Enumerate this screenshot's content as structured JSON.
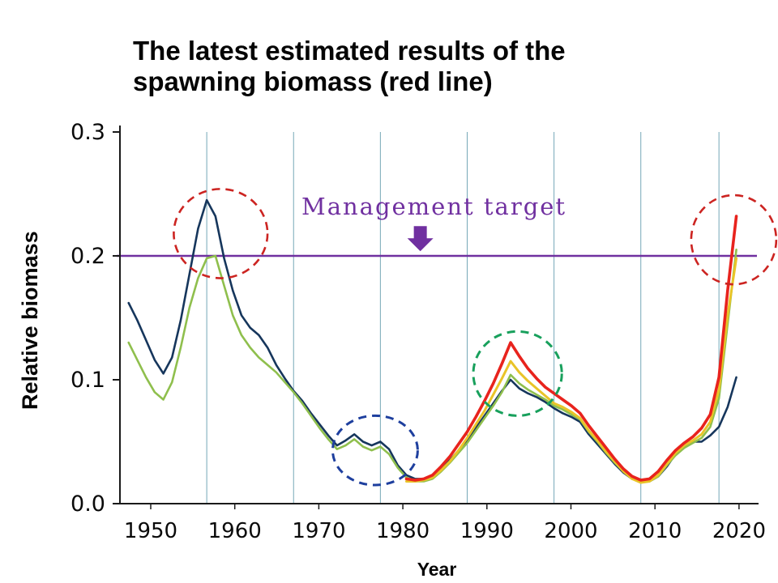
{
  "title": {
    "line1": "The latest estimated results of the",
    "line2": "spawning biomass (red line)"
  },
  "chart_data": {
    "type": "line",
    "title": "The latest estimated results of the spawning biomass (red line)",
    "xlabel": "Year",
    "ylabel": "Relative biomass",
    "xlim": [
      1949,
      2022
    ],
    "ylim": [
      0,
      0.3
    ],
    "x_ticks": [
      1950,
      1960,
      1970,
      1980,
      1990,
      2000,
      2010,
      2020
    ],
    "y_ticks": [
      0,
      0.1,
      0.2,
      0.3
    ],
    "x_gridlines": [
      1959,
      1969,
      1979,
      1989,
      1999,
      2009,
      2018
    ],
    "grid": "vertical-only",
    "legend": "none",
    "management_target": {
      "label": "Management target",
      "value": 0.2,
      "color": "#7030a0"
    },
    "series": [
      {
        "id": "dark-blue",
        "name": "dark blue line (earlier estimate)",
        "color": "#16365c",
        "width": 2.6,
        "x_start": 1950,
        "x_step": 1,
        "values": [
          0.162,
          0.148,
          0.132,
          0.116,
          0.105,
          0.118,
          0.148,
          0.185,
          0.222,
          0.245,
          0.232,
          0.198,
          0.172,
          0.152,
          0.142,
          0.136,
          0.126,
          0.112,
          0.101,
          0.091,
          0.083,
          0.073,
          0.064,
          0.055,
          0.047,
          0.051,
          0.056,
          0.05,
          0.047,
          0.05,
          0.044,
          0.031,
          0.023,
          0.02,
          0.02,
          0.022,
          0.028,
          0.035,
          0.043,
          0.051,
          0.061,
          0.071,
          0.081,
          0.091,
          0.1,
          0.093,
          0.089,
          0.086,
          0.082,
          0.077,
          0.073,
          0.07,
          0.066,
          0.056,
          0.048,
          0.04,
          0.032,
          0.025,
          0.02,
          0.018,
          0.018,
          0.022,
          0.03,
          0.04,
          0.046,
          0.05,
          0.05,
          0.055,
          0.062,
          0.078,
          0.102
        ]
      },
      {
        "id": "green",
        "name": "green line (earlier estimate)",
        "color": "#8fbf4d",
        "width": 2.6,
        "x_start": 1950,
        "x_step": 1,
        "values": [
          0.13,
          0.116,
          0.102,
          0.09,
          0.084,
          0.098,
          0.126,
          0.158,
          0.182,
          0.198,
          0.2,
          0.176,
          0.152,
          0.136,
          0.126,
          0.118,
          0.112,
          0.106,
          0.098,
          0.09,
          0.081,
          0.071,
          0.061,
          0.052,
          0.044,
          0.047,
          0.052,
          0.046,
          0.043,
          0.046,
          0.04,
          0.029,
          0.021,
          0.018,
          0.018,
          0.02,
          0.026,
          0.033,
          0.041,
          0.049,
          0.059,
          0.069,
          0.079,
          0.09,
          0.104,
          0.097,
          0.092,
          0.088,
          0.084,
          0.079,
          0.076,
          0.072,
          0.068,
          0.058,
          0.05,
          0.041,
          0.033,
          0.026,
          0.02,
          0.018,
          0.018,
          0.022,
          0.031,
          0.039,
          0.045,
          0.049,
          0.053,
          0.062,
          0.085,
          0.145,
          0.205
        ]
      },
      {
        "id": "yellow",
        "name": "yellow line (estimate)",
        "color": "#e9c428",
        "width": 3,
        "x_start": 1982,
        "x_step": 1,
        "values": [
          0.018,
          0.018,
          0.019,
          0.021,
          0.027,
          0.034,
          0.043,
          0.053,
          0.064,
          0.075,
          0.088,
          0.101,
          0.115,
          0.106,
          0.099,
          0.093,
          0.087,
          0.081,
          0.078,
          0.074,
          0.069,
          0.059,
          0.051,
          0.042,
          0.034,
          0.026,
          0.02,
          0.017,
          0.018,
          0.023,
          0.032,
          0.041,
          0.047,
          0.051,
          0.056,
          0.066,
          0.092,
          0.152,
          0.198
        ]
      },
      {
        "id": "red",
        "name": "red line (latest estimated spawning biomass)",
        "color": "#e8231d",
        "width": 3.6,
        "x_start": 1982,
        "x_step": 1,
        "values": [
          0.02,
          0.019,
          0.02,
          0.023,
          0.03,
          0.038,
          0.048,
          0.058,
          0.07,
          0.083,
          0.097,
          0.113,
          0.13,
          0.119,
          0.109,
          0.101,
          0.094,
          0.089,
          0.084,
          0.079,
          0.073,
          0.063,
          0.054,
          0.045,
          0.036,
          0.028,
          0.022,
          0.019,
          0.02,
          0.026,
          0.035,
          0.043,
          0.049,
          0.054,
          0.061,
          0.072,
          0.102,
          0.172,
          0.232
        ]
      }
    ],
    "annotations": {
      "circles": [
        {
          "name": "dashed-circle-1959-peak",
          "color": "#cc2421",
          "cx": 1960.6,
          "cy": 0.218,
          "rx": 5.4,
          "ry": 0.036,
          "width": 2.6
        },
        {
          "name": "dashed-circle-2020-rise",
          "color": "#cc2421",
          "cx": 2019.7,
          "cy": 0.213,
          "rx": 4.9,
          "ry": 0.036,
          "width": 2.6
        },
        {
          "name": "dashed-circle-late-1970s-low",
          "color": "#1e3f9e",
          "cx": 1978.4,
          "cy": 0.043,
          "rx": 4.9,
          "ry": 0.028,
          "width": 3
        },
        {
          "name": "dashed-circle-mid-1990s-peak",
          "color": "#18a05c",
          "cx": 1994.8,
          "cy": 0.105,
          "rx": 5.1,
          "ry": 0.034,
          "width": 3
        }
      ],
      "arrow": {
        "symbol": "down-arrow",
        "x": 1983.6,
        "top_value": 0.224
      }
    }
  }
}
